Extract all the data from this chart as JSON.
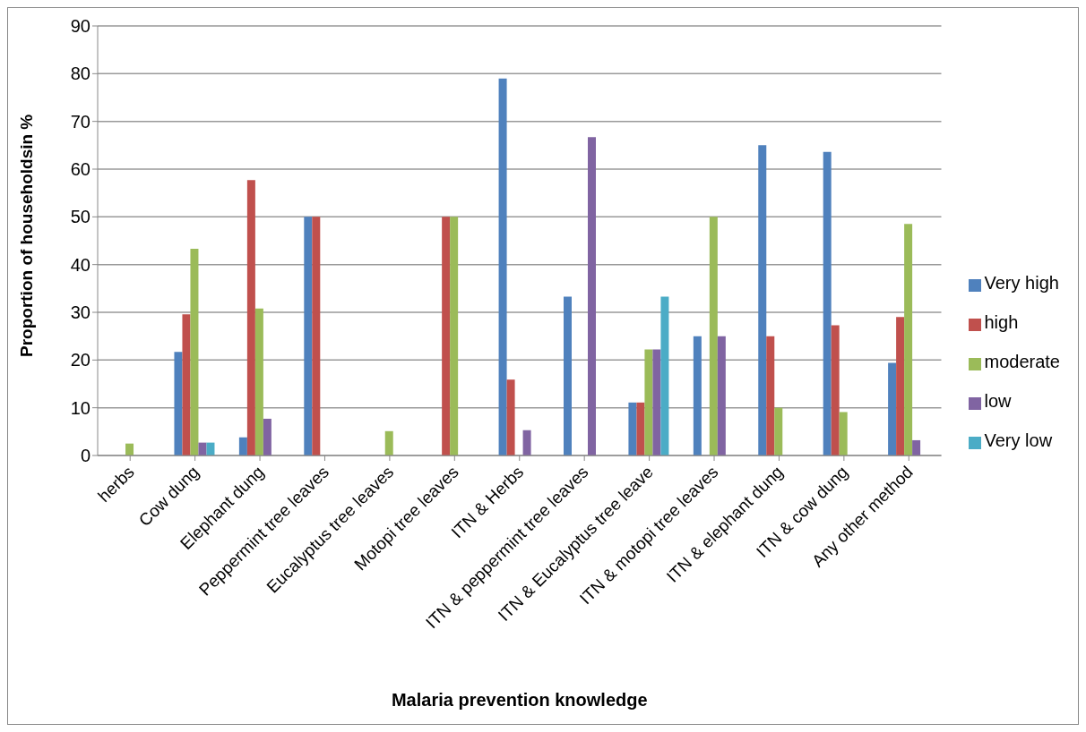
{
  "chart_data": {
    "type": "bar",
    "xlabel": "Malaria prevention knowledge",
    "ylabel": "Proportion of householdsin  %",
    "categories": [
      "herbs",
      "Cow dung",
      "Elephant dung",
      "Peppermint tree leaves",
      "Eucalyptus tree leaves",
      "Motopi tree leaves",
      "ITN & Herbs",
      "ITN & peppermint tree leaves",
      "ITN & Eucalyptus tree leave",
      "ITN & motopi tree leaves",
      "ITN & elephant dung",
      "ITN & cow dung",
      "Any other method"
    ],
    "series": [
      {
        "name": "Very high",
        "color": "#4f81bd",
        "values": [
          0,
          21.7,
          3.8,
          50,
          0,
          0,
          79,
          33.3,
          11.1,
          25,
          65,
          63.6,
          19.4
        ]
      },
      {
        "name": "high",
        "color": "#c0504d",
        "values": [
          0,
          29.6,
          57.7,
          50,
          0,
          50,
          15.9,
          0,
          11.1,
          0,
          25,
          27.3,
          29
        ]
      },
      {
        "name": "moderate",
        "color": "#9bbb59",
        "values": [
          2.5,
          43.3,
          30.8,
          0,
          5.1,
          50,
          0,
          0,
          22.2,
          50,
          10,
          9.1,
          48.5
        ]
      },
      {
        "name": "low",
        "color": "#8064a2",
        "values": [
          0,
          2.7,
          7.7,
          0,
          0,
          0,
          5.3,
          66.7,
          22.2,
          25,
          0,
          0,
          3.2
        ]
      },
      {
        "name": "Very low",
        "color": "#4bacc6",
        "values": [
          0,
          2.7,
          0,
          0,
          0,
          0,
          0,
          0,
          33.3,
          0,
          0,
          0,
          0
        ]
      }
    ],
    "ylim": [
      0,
      90
    ],
    "yticks": [
      0,
      10,
      20,
      30,
      40,
      50,
      60,
      70,
      80,
      90
    ],
    "grid": "y",
    "legend": "right"
  }
}
